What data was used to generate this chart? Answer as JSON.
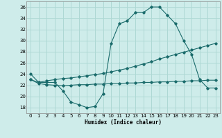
{
  "xlabel": "Humidex (Indice chaleur)",
  "bg_color": "#ceecea",
  "grid_color": "#aed8d4",
  "line_color": "#1a6b6b",
  "xlim": [
    -0.5,
    23.5
  ],
  "ylim": [
    17,
    37
  ],
  "yticks": [
    18,
    20,
    22,
    24,
    26,
    28,
    30,
    32,
    34,
    36
  ],
  "xticks": [
    0,
    1,
    2,
    3,
    4,
    5,
    6,
    7,
    8,
    9,
    10,
    11,
    12,
    13,
    14,
    15,
    16,
    17,
    18,
    19,
    20,
    21,
    22,
    23
  ],
  "line1_x": [
    0,
    1,
    2,
    3,
    4,
    5,
    6,
    7,
    8,
    9,
    10,
    11,
    12,
    13,
    14,
    15,
    16,
    17,
    18,
    19,
    20,
    21,
    22,
    23
  ],
  "line1_y": [
    24,
    22.5,
    22.5,
    22.5,
    21,
    19,
    18.5,
    18,
    18.2,
    20.5,
    29.5,
    33,
    33.5,
    35,
    35,
    36,
    36,
    34.5,
    33,
    30,
    27.5,
    23,
    21.5,
    21.5
  ],
  "line2_x": [
    0,
    1,
    2,
    3,
    4,
    5,
    6,
    7,
    8,
    9,
    10,
    11,
    12,
    13,
    14,
    15,
    16,
    17,
    18,
    19,
    20,
    21,
    22,
    23
  ],
  "line2_y": [
    23,
    22.5,
    22.8,
    23.0,
    23.2,
    23.3,
    23.5,
    23.7,
    23.9,
    24.1,
    24.4,
    24.7,
    25.0,
    25.4,
    25.8,
    26.2,
    26.7,
    27.1,
    27.5,
    27.9,
    28.3,
    28.7,
    29.1,
    29.5
  ],
  "line3_x": [
    0,
    1,
    2,
    3,
    4,
    5,
    6,
    7,
    8,
    9,
    10,
    11,
    12,
    13,
    14,
    15,
    16,
    17,
    18,
    19,
    20,
    21,
    22,
    23
  ],
  "line3_y": [
    23,
    22.3,
    22.1,
    22.0,
    21.9,
    22.0,
    22.1,
    22.1,
    22.2,
    22.2,
    22.3,
    22.3,
    22.4,
    22.4,
    22.5,
    22.5,
    22.6,
    22.6,
    22.7,
    22.7,
    22.8,
    22.8,
    22.9,
    22.9
  ]
}
